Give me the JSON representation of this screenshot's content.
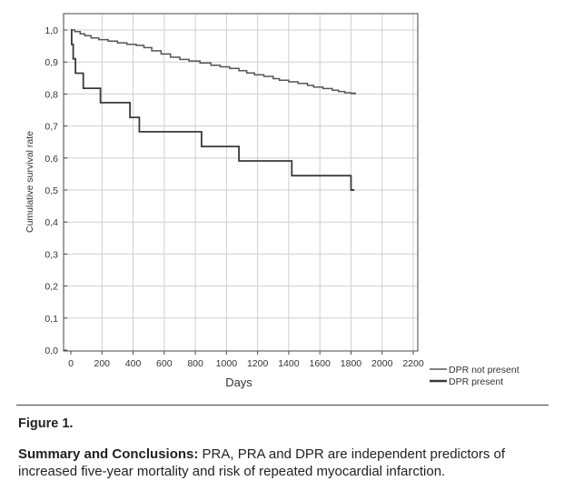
{
  "chart_data": {
    "type": "line",
    "title": "",
    "xlabel": "Days",
    "ylabel": "Cumulative survival rate",
    "xlim": [
      0,
      2200
    ],
    "ylim": [
      0,
      1.0
    ],
    "x_ticks": [
      "0",
      "200",
      "400",
      "600",
      "800",
      "1000",
      "1200",
      "1400",
      "1600",
      "1800",
      "2000",
      "2200"
    ],
    "y_ticks": [
      "0,0",
      "0,1",
      "0,2",
      "0,3",
      "0,4",
      "0,5",
      "0,6",
      "0,7",
      "0,8",
      "0,9",
      "1,0"
    ],
    "grid": true,
    "legend_position": "bottom-right, outside plot",
    "series": [
      {
        "name": "DPR not present",
        "color": "#555555",
        "step": true,
        "points": [
          [
            0,
            1.0
          ],
          [
            25,
            0.995
          ],
          [
            60,
            0.988
          ],
          [
            90,
            0.982
          ],
          [
            130,
            0.975
          ],
          [
            180,
            0.97
          ],
          [
            240,
            0.965
          ],
          [
            300,
            0.96
          ],
          [
            360,
            0.955
          ],
          [
            420,
            0.952
          ],
          [
            470,
            0.945
          ],
          [
            520,
            0.935
          ],
          [
            580,
            0.925
          ],
          [
            640,
            0.915
          ],
          [
            700,
            0.908
          ],
          [
            760,
            0.903
          ],
          [
            830,
            0.897
          ],
          [
            900,
            0.89
          ],
          [
            960,
            0.885
          ],
          [
            1020,
            0.88
          ],
          [
            1080,
            0.873
          ],
          [
            1130,
            0.866
          ],
          [
            1180,
            0.86
          ],
          [
            1240,
            0.855
          ],
          [
            1300,
            0.848
          ],
          [
            1340,
            0.843
          ],
          [
            1400,
            0.838
          ],
          [
            1460,
            0.833
          ],
          [
            1520,
            0.827
          ],
          [
            1560,
            0.822
          ],
          [
            1620,
            0.817
          ],
          [
            1680,
            0.812
          ],
          [
            1720,
            0.808
          ],
          [
            1760,
            0.804
          ],
          [
            1800,
            0.802
          ],
          [
            1820,
            0.802
          ]
        ]
      },
      {
        "name": "DPR present",
        "color": "#3a3a3a",
        "step": true,
        "points": [
          [
            0,
            1.0
          ],
          [
            5,
            0.955
          ],
          [
            15,
            0.91
          ],
          [
            30,
            0.865
          ],
          [
            80,
            0.818
          ],
          [
            190,
            0.773
          ],
          [
            380,
            0.727
          ],
          [
            440,
            0.682
          ],
          [
            840,
            0.636
          ],
          [
            1080,
            0.591
          ],
          [
            1420,
            0.545
          ],
          [
            1800,
            0.5
          ],
          [
            1810,
            0.5
          ]
        ]
      }
    ]
  },
  "caption": {
    "figure_label": "Figure 1.",
    "summary_heading": "Summary and Conclusions:",
    "summary_text": " PRA, PRA and DPR are independent predictors of increased five-year mortality and risk of repeated myocardial infarction."
  }
}
